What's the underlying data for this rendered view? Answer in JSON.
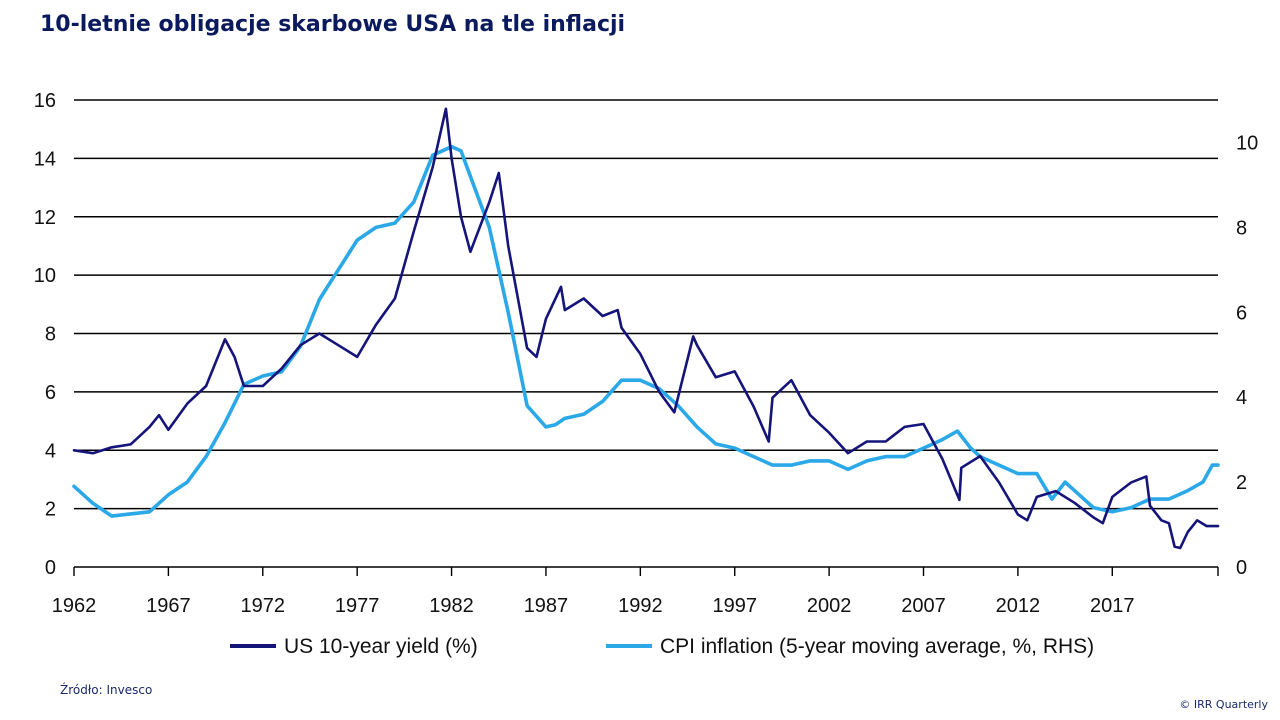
{
  "title": "10-letnie obligacje skarbowe USA na tle inflacji",
  "source": "Źródło: Invesco",
  "copyright": "© IRR Quarterly",
  "chart_data": {
    "type": "line",
    "x_ticks": [
      "1962",
      "1967",
      "1972",
      "1977",
      "1982",
      "1987",
      "1992",
      "1997",
      "2002",
      "2007",
      "2012",
      "2017"
    ],
    "x_range": [
      1962,
      2022.6
    ],
    "left_axis": {
      "ticks": [
        "0",
        "2",
        "4",
        "6",
        "8",
        "10",
        "12",
        "14",
        "16"
      ],
      "range": [
        0,
        16
      ]
    },
    "right_axis": {
      "ticks": [
        "0",
        "2",
        "4",
        "6",
        "8",
        "10"
      ],
      "range": [
        0,
        11
      ]
    },
    "grid": "horizontal",
    "legend_position": "bottom",
    "colors": {
      "yield": "#14147a",
      "cpi": "#2aa8e8"
    },
    "series": [
      {
        "name": "US 10-year yield (%)",
        "axis": "left",
        "x": [
          1962,
          1963,
          1964,
          1965,
          1966,
          1966.5,
          1967,
          1968,
          1969,
          1970,
          1970.5,
          1971,
          1972,
          1973,
          1974,
          1975,
          1976,
          1977,
          1978,
          1979,
          1980,
          1981,
          1981.7,
          1982,
          1982.5,
          1983,
          1984,
          1984.5,
          1985,
          1986,
          1986.5,
          1987,
          1987.8,
          1988,
          1989,
          1990,
          1990.8,
          1991,
          1992,
          1993,
          1993.8,
          1994.8,
          1995,
          1996,
          1997,
          1998,
          1998.8,
          1999,
          2000,
          2001,
          2002,
          2003,
          2004,
          2005,
          2006,
          2007,
          2008,
          2008.9,
          2009,
          2010,
          2011,
          2012,
          2012.5,
          2013,
          2014,
          2015,
          2016,
          2016.5,
          2017,
          2018,
          2018.8,
          2019,
          2019.6,
          2020,
          2020.3,
          2020.6,
          2021,
          2021.5,
          2022,
          2022.6
        ],
        "y": [
          4.0,
          3.9,
          4.1,
          4.2,
          4.8,
          5.2,
          4.7,
          5.6,
          6.2,
          7.8,
          7.2,
          6.2,
          6.2,
          6.8,
          7.6,
          8.0,
          7.6,
          7.2,
          8.3,
          9.2,
          11.5,
          13.7,
          15.7,
          14.0,
          12.0,
          10.8,
          12.5,
          13.5,
          11.0,
          7.5,
          7.2,
          8.5,
          9.6,
          8.8,
          9.2,
          8.6,
          8.8,
          8.2,
          7.3,
          6.0,
          5.3,
          7.9,
          7.6,
          6.5,
          6.7,
          5.5,
          4.3,
          5.8,
          6.4,
          5.2,
          4.6,
          3.9,
          4.3,
          4.3,
          4.8,
          4.9,
          3.7,
          2.3,
          3.4,
          3.8,
          2.9,
          1.8,
          1.6,
          2.4,
          2.6,
          2.2,
          1.7,
          1.5,
          2.4,
          2.9,
          3.1,
          2.1,
          1.6,
          1.5,
          0.7,
          0.65,
          1.2,
          1.6,
          1.4,
          1.4
        ]
      },
      {
        "name": "CPI inflation (5-year moving average, %, RHS)",
        "axis": "right",
        "x": [
          1962,
          1963,
          1964,
          1965,
          1966,
          1967,
          1968,
          1969,
          1970,
          1971,
          1972,
          1973,
          1974,
          1975,
          1976,
          1977,
          1978,
          1979,
          1980,
          1981,
          1982,
          1982.5,
          1983,
          1984,
          1985,
          1986,
          1987,
          1987.5,
          1988,
          1989,
          1990,
          1991,
          1992,
          1993,
          1994,
          1995,
          1996,
          1997,
          1998,
          1999,
          2000,
          2001,
          2002,
          2003,
          2004,
          2005,
          2006,
          2007,
          2008,
          2008.8,
          2009.5,
          2010,
          2011,
          2012,
          2013,
          2013.8,
          2014.5,
          2015,
          2016,
          2017,
          2018,
          2019,
          2020,
          2021,
          2021.8,
          2022.3,
          2022.6
        ],
        "y": [
          1.9,
          1.5,
          1.2,
          1.25,
          1.3,
          1.7,
          2.0,
          2.6,
          3.4,
          4.3,
          4.5,
          4.6,
          5.2,
          6.3,
          7.0,
          7.7,
          8.0,
          8.1,
          8.6,
          9.7,
          9.9,
          9.8,
          9.2,
          8.0,
          6.0,
          3.8,
          3.3,
          3.35,
          3.5,
          3.6,
          3.9,
          4.4,
          4.4,
          4.2,
          3.8,
          3.3,
          2.9,
          2.8,
          2.6,
          2.4,
          2.4,
          2.5,
          2.5,
          2.3,
          2.5,
          2.6,
          2.6,
          2.8,
          3.0,
          3.2,
          2.8,
          2.6,
          2.4,
          2.2,
          2.2,
          1.6,
          2.0,
          1.8,
          1.4,
          1.3,
          1.4,
          1.6,
          1.6,
          1.8,
          2.0,
          2.4,
          2.4
        ]
      }
    ]
  }
}
